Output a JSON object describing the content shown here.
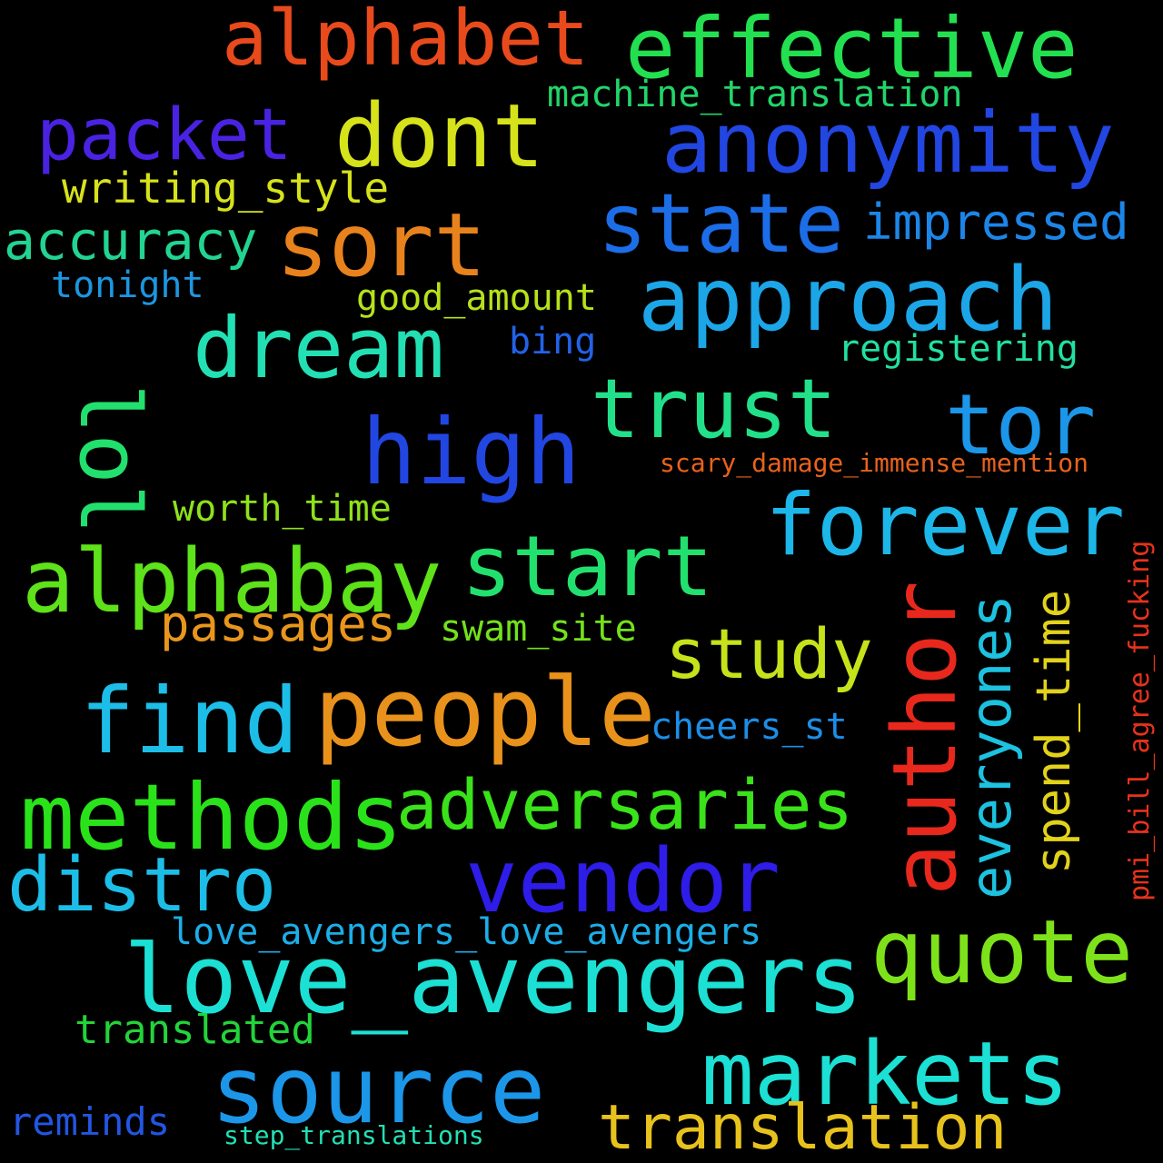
{
  "background": "#000000",
  "words": [
    {
      "text": "effective",
      "color": "#22e04f"
    },
    {
      "text": "alphabet",
      "color": "#e84a1c"
    },
    {
      "text": "dont",
      "color": "#d6e21a"
    },
    {
      "text": "packet",
      "color": "#4a22e2"
    },
    {
      "text": "anonymity",
      "color": "#2246e2"
    },
    {
      "text": "machine_translation",
      "color": "#22d46a"
    },
    {
      "text": "writing_style",
      "color": "#d6e21a"
    },
    {
      "text": "sort",
      "color": "#e8821c"
    },
    {
      "text": "state",
      "color": "#1c6ee8"
    },
    {
      "text": "impressed",
      "color": "#1c86e8"
    },
    {
      "text": "accuracy",
      "color": "#22d492"
    },
    {
      "text": "tonight",
      "color": "#1c96e0"
    },
    {
      "text": "approach",
      "color": "#1ca6e8"
    },
    {
      "text": "good_amount",
      "color": "#b6e21a"
    },
    {
      "text": "dream",
      "color": "#22e0b4"
    },
    {
      "text": "bing",
      "color": "#2262e8"
    },
    {
      "text": "registering",
      "color": "#22e0a2"
    },
    {
      "text": "lol",
      "color": "#22e06e"
    },
    {
      "text": "trust",
      "color": "#22e08a"
    },
    {
      "text": "tor",
      "color": "#1c96e8"
    },
    {
      "text": "high",
      "color": "#2246e2"
    },
    {
      "text": "scary_damage_immense_mention",
      "color": "#e8621c"
    },
    {
      "text": "worth_time",
      "color": "#8ee21a"
    },
    {
      "text": "forever",
      "color": "#1cb6e8"
    },
    {
      "text": "alphabay",
      "color": "#5ee21a"
    },
    {
      "text": "start",
      "color": "#22e06e"
    },
    {
      "text": "author",
      "color": "#e8281c"
    },
    {
      "text": "everyones",
      "color": "#1cc2e0"
    },
    {
      "text": "spend_time",
      "color": "#e2d21a"
    },
    {
      "text": "pmi_bill_agree_fucking",
      "color": "#e8321c"
    },
    {
      "text": "passages",
      "color": "#e8961c"
    },
    {
      "text": "swam_site",
      "color": "#72e21a"
    },
    {
      "text": "study",
      "color": "#c6e21a"
    },
    {
      "text": "find",
      "color": "#1cbee8"
    },
    {
      "text": "people",
      "color": "#e8921c"
    },
    {
      "text": "cheers_st",
      "color": "#1c8ee8"
    },
    {
      "text": "methods",
      "color": "#2ae21a"
    },
    {
      "text": "adversaries",
      "color": "#3ae21a"
    },
    {
      "text": "distro",
      "color": "#1cbee8"
    },
    {
      "text": "vendor",
      "color": "#2e1ce8"
    },
    {
      "text": "love_avengers_love_avengers",
      "color": "#1caee8"
    },
    {
      "text": "quote",
      "color": "#7ee21a"
    },
    {
      "text": "love_avengers",
      "color": "#1ce0d4"
    },
    {
      "text": "translated",
      "color": "#22d43a"
    },
    {
      "text": "markets",
      "color": "#1ce0d4"
    },
    {
      "text": "source",
      "color": "#1c96e8"
    },
    {
      "text": "reminds",
      "color": "#2256e2"
    },
    {
      "text": "step_translations",
      "color": "#22e0b4"
    },
    {
      "text": "translation",
      "color": "#e8c21c"
    }
  ]
}
